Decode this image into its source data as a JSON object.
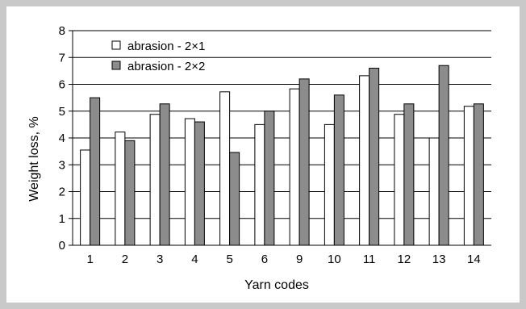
{
  "chart_data": {
    "type": "bar",
    "xlabel": "Yarn codes",
    "ylabel": "Weight loss, %",
    "ylim": [
      0,
      8
    ],
    "yticks": [
      0,
      1,
      2,
      3,
      4,
      5,
      6,
      7,
      8
    ],
    "grid": true,
    "legend_position": "top-left",
    "categories": [
      "1",
      "2",
      "3",
      "4",
      "5",
      "6",
      "9",
      "10",
      "11",
      "12",
      "13",
      "14"
    ],
    "series": [
      {
        "name": "abrasion - 2×1",
        "color": "#ffffff",
        "values": [
          3.55,
          4.22,
          4.88,
          4.72,
          5.72,
          4.5,
          5.83,
          4.5,
          6.32,
          4.88,
          4.0,
          5.18
        ]
      },
      {
        "name": "abrasion - 2×2",
        "color": "#8c8c8c",
        "values": [
          5.5,
          3.9,
          5.27,
          4.6,
          3.46,
          5.0,
          6.2,
          5.6,
          6.6,
          5.27,
          6.7,
          5.27
        ]
      }
    ]
  }
}
